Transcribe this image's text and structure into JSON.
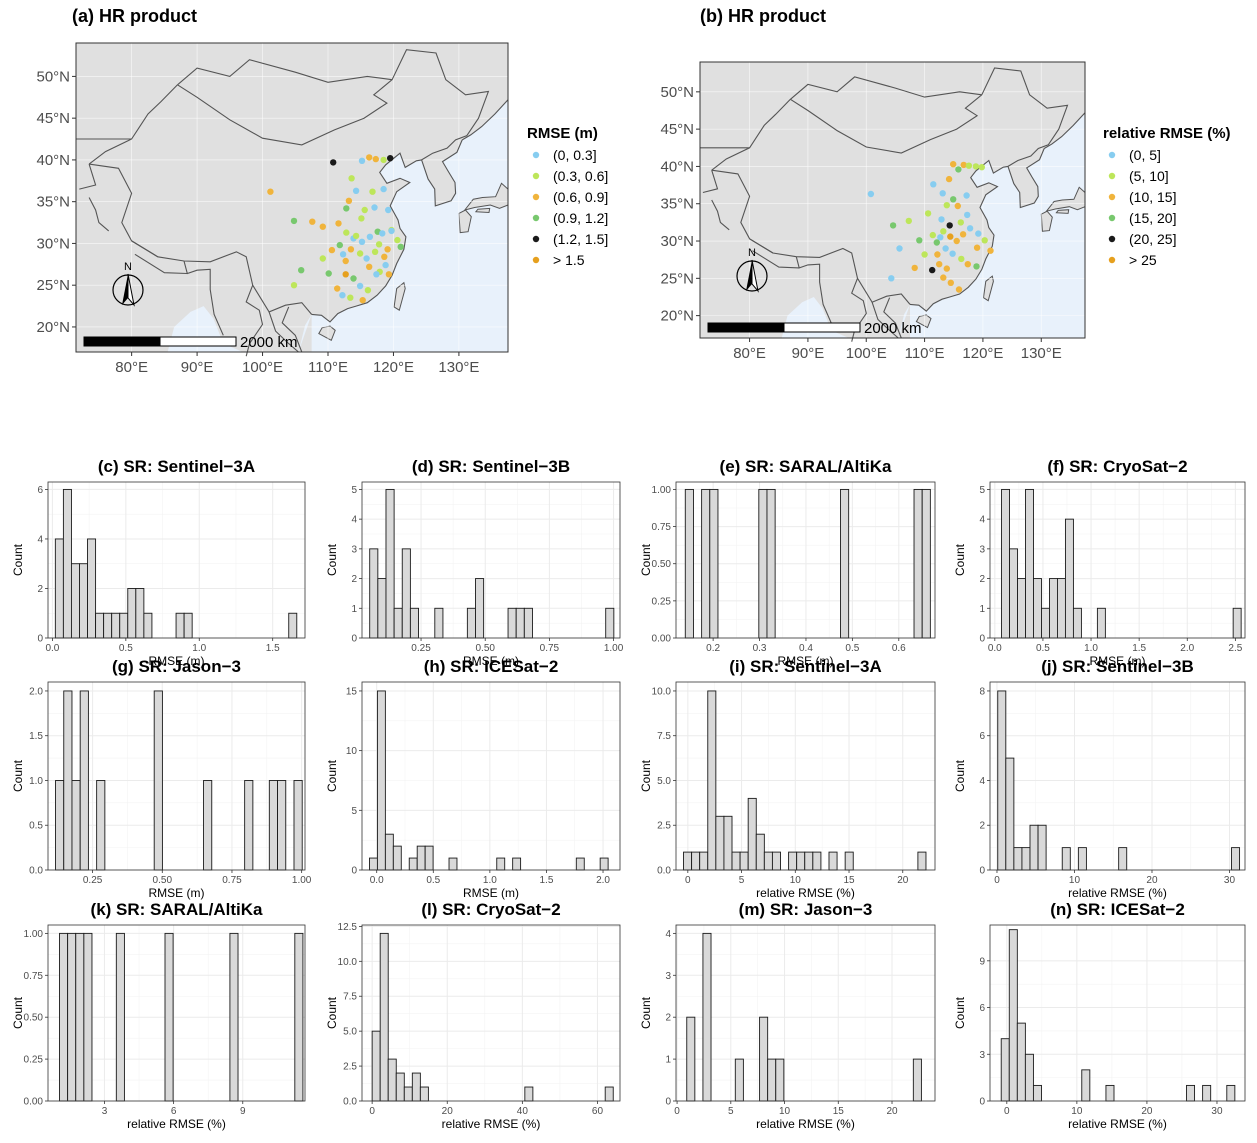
{
  "colors": {
    "panel_bg": "#ffffff",
    "grid": "#ebebeb",
    "bar_fill": "#d9d9d9",
    "bar_stroke": "#1a1a1a",
    "land": "#e0e0e0",
    "sea": "#e8f1fb",
    "border": "#555555"
  },
  "maps": [
    {
      "title": "(a) HR product",
      "legend_title": "RMSE (m)",
      "legend": [
        {
          "label": "(0, 0.3]",
          "color": "#87cdf0"
        },
        {
          "label": "(0.3, 0.6]",
          "color": "#bde65a"
        },
        {
          "label": "(0.6, 0.9]",
          "color": "#f0b43c"
        },
        {
          "label": "(0.9, 1.2]",
          "color": "#78c86e"
        },
        {
          "label": "(1.2, 1.5]",
          "color": "#1a1a1a"
        },
        {
          "label": "> 1.5",
          "color": "#e6a01e"
        }
      ],
      "xticks": [
        "80°E",
        "90°E",
        "100°E",
        "110°E",
        "120°E",
        "130°E"
      ],
      "yticks": [
        "20°N",
        "25°N",
        "30°N",
        "35°N",
        "40°N",
        "45°N",
        "50°N"
      ],
      "scale_label": "2000 km"
    },
    {
      "title": "(b) HR product",
      "legend_title": "relative RMSE (%)",
      "legend": [
        {
          "label": "(0, 5]",
          "color": "#87cdf0"
        },
        {
          "label": "(5, 10]",
          "color": "#bde65a"
        },
        {
          "label": "(10, 15]",
          "color": "#f0b43c"
        },
        {
          "label": "(15, 20]",
          "color": "#78c86e"
        },
        {
          "label": "(20, 25]",
          "color": "#1a1a1a"
        },
        {
          "label": "> 25",
          "color": "#e6a01e"
        }
      ],
      "xticks": [
        "80°E",
        "90°E",
        "100°E",
        "110°E",
        "120°E",
        "130°E"
      ],
      "yticks": [
        "20°N",
        "25°N",
        "30°N",
        "35°N",
        "40°N",
        "45°N",
        "50°N"
      ],
      "scale_label": "2000 km"
    }
  ],
  "chart_data": [
    {
      "type": "bar",
      "title": "(c) SR: Sentinel−3A",
      "xlabel": "RMSE (m)",
      "ylabel": "Count",
      "xlim": [
        -0.03,
        1.72
      ],
      "ylim": [
        0,
        6.3
      ],
      "xticks": [
        0.0,
        0.5,
        1.0,
        1.5
      ],
      "xticklabels": [
        "0.0",
        "0.5",
        "1.0",
        "1.5"
      ],
      "yticks": [
        0,
        2,
        4,
        6
      ],
      "yticklabels": [
        "0",
        "2",
        "4",
        "6"
      ],
      "bin_start": 0.02,
      "bin_width": 0.0548,
      "counts": [
        4,
        6,
        3,
        3,
        4,
        1,
        1,
        1,
        1,
        2,
        2,
        1,
        0,
        0,
        0,
        1,
        1,
        0,
        0,
        0,
        0,
        0,
        0,
        0,
        0,
        0,
        0,
        0,
        0,
        1
      ]
    },
    {
      "type": "bar",
      "title": "(d) SR: Sentinel−3B",
      "xlabel": "RMSE (m)",
      "ylabel": "Count",
      "xlim": [
        0.02,
        1.025
      ],
      "ylim": [
        0,
        5.25
      ],
      "xticks": [
        0.25,
        0.5,
        0.75,
        1.0
      ],
      "xticklabels": [
        "0.25",
        "0.50",
        "0.75",
        "1.00"
      ],
      "yticks": [
        0,
        1,
        2,
        3,
        4,
        5
      ],
      "yticklabels": [
        "0",
        "1",
        "2",
        "3",
        "4",
        "5"
      ],
      "bin_start": 0.05,
      "bin_width": 0.0317,
      "counts": [
        3,
        2,
        5,
        1,
        3,
        1,
        0,
        0,
        1,
        0,
        0,
        0,
        1,
        2,
        0,
        0,
        0,
        1,
        1,
        1,
        0,
        0,
        0,
        0,
        0,
        0,
        0,
        0,
        0,
        1
      ]
    },
    {
      "type": "bar",
      "title": "(e) SR: SARAL/AltiKa",
      "xlabel": "RMSE (m)",
      "ylabel": "Count",
      "xlim": [
        0.12,
        0.678
      ],
      "ylim": [
        0,
        1.05
      ],
      "xticks": [
        0.2,
        0.3,
        0.4,
        0.5,
        0.6
      ],
      "xticklabels": [
        "0.2",
        "0.3",
        "0.4",
        "0.5",
        "0.6"
      ],
      "yticks": [
        0,
        0.25,
        0.5,
        0.75,
        1.0
      ],
      "yticklabels": [
        "0.00",
        "0.25",
        "0.50",
        "0.75",
        "1.00"
      ],
      "bin_start": 0.14,
      "bin_width": 0.0176,
      "counts": [
        1,
        0,
        1,
        1,
        0,
        0,
        0,
        0,
        0,
        1,
        1,
        0,
        0,
        0,
        0,
        0,
        0,
        0,
        0,
        1,
        0,
        0,
        0,
        0,
        0,
        0,
        0,
        0,
        1,
        1
      ]
    },
    {
      "type": "bar",
      "title": "(f) SR: CryoSat−2",
      "xlabel": "RMSE (m)",
      "ylabel": "Count",
      "xlim": [
        -0.05,
        2.6
      ],
      "ylim": [
        0,
        5.25
      ],
      "xticks": [
        0.0,
        0.5,
        1.0,
        1.5,
        2.0,
        2.5
      ],
      "xticklabels": [
        "0.0",
        "0.5",
        "1.0",
        "1.5",
        "2.0",
        "2.5"
      ],
      "yticks": [
        0,
        1,
        2,
        3,
        4,
        5
      ],
      "yticklabels": [
        "0",
        "1",
        "2",
        "3",
        "4",
        "5"
      ],
      "bin_start": 0.07,
      "bin_width": 0.083,
      "counts": [
        5,
        3,
        2,
        5,
        2,
        1,
        2,
        2,
        4,
        1,
        0,
        0,
        1,
        0,
        0,
        0,
        0,
        0,
        0,
        0,
        0,
        0,
        0,
        0,
        0,
        0,
        0,
        0,
        0,
        1
      ]
    },
    {
      "type": "bar",
      "title": "(g) SR: Jason−3",
      "xlabel": "RMSE (m)",
      "ylabel": "Count",
      "xlim": [
        0.09,
        1.012
      ],
      "ylim": [
        0,
        2.1
      ],
      "xticks": [
        0.25,
        0.5,
        0.75,
        1.0
      ],
      "xticklabels": [
        "0.25",
        "0.50",
        "0.75",
        "1.00"
      ],
      "yticks": [
        0,
        0.5,
        1.0,
        1.5,
        2.0
      ],
      "yticklabels": [
        "0.0",
        "0.5",
        "1.0",
        "1.5",
        "2.0"
      ],
      "bin_start": 0.117,
      "bin_width": 0.0295,
      "counts": [
        1,
        2,
        1,
        2,
        0,
        1,
        0,
        0,
        0,
        0,
        0,
        0,
        2,
        0,
        0,
        0,
        0,
        0,
        1,
        0,
        0,
        0,
        0,
        1,
        0,
        0,
        1,
        1,
        0,
        1
      ]
    },
    {
      "type": "bar",
      "title": "(h) SR: ICESat−2",
      "xlabel": "RMSE (m)",
      "ylabel": "Count",
      "xlim": [
        -0.13,
        2.15
      ],
      "ylim": [
        0,
        15.75
      ],
      "xticks": [
        0.0,
        0.5,
        1.0,
        1.5,
        2.0
      ],
      "xticklabels": [
        "0.0",
        "0.5",
        "1.0",
        "1.5",
        "2.0"
      ],
      "yticks": [
        0,
        5,
        10,
        15
      ],
      "yticklabels": [
        "0",
        "5",
        "10",
        "15"
      ],
      "bin_start": -0.064,
      "bin_width": 0.0703,
      "counts": [
        1,
        15,
        3,
        2,
        0,
        1,
        2,
        2,
        0,
        0,
        1,
        0,
        0,
        0,
        0,
        0,
        1,
        0,
        1,
        0,
        0,
        0,
        0,
        0,
        0,
        0,
        1,
        0,
        0,
        1
      ]
    },
    {
      "type": "bar",
      "title": "(i) SR: Sentinel−3A",
      "xlabel": "relative RMSE (%)",
      "ylabel": "Count",
      "xlim": [
        -1.1,
        23.0
      ],
      "ylim": [
        0,
        10.5
      ],
      "xticks": [
        0,
        5,
        10,
        15,
        20
      ],
      "xticklabels": [
        "0",
        "5",
        "10",
        "15",
        "20"
      ],
      "yticks": [
        0,
        2.5,
        5.0,
        7.5,
        10.0
      ],
      "yticklabels": [
        "0.0",
        "2.5",
        "5.0",
        "7.5",
        "10.0"
      ],
      "bin_start": -0.4,
      "bin_width": 0.752,
      "counts": [
        1,
        1,
        1,
        10,
        3,
        3,
        1,
        1,
        4,
        2,
        1,
        1,
        0,
        1,
        1,
        1,
        1,
        0,
        1,
        0,
        1,
        0,
        0,
        0,
        0,
        0,
        0,
        0,
        0,
        1
      ]
    },
    {
      "type": "bar",
      "title": "(j) SR: Sentinel−3B",
      "xlabel": "relative RMSE (%)",
      "ylabel": "Count",
      "xlim": [
        -0.9,
        32.0
      ],
      "ylim": [
        0,
        8.4
      ],
      "xticks": [
        0,
        10,
        20,
        30
      ],
      "xticklabels": [
        "0",
        "10",
        "20",
        "30"
      ],
      "yticks": [
        0,
        2,
        4,
        6,
        8
      ],
      "yticklabels": [
        "0",
        "2",
        "4",
        "6",
        "8"
      ],
      "bin_start": 0.1,
      "bin_width": 1.04,
      "counts": [
        8,
        5,
        1,
        1,
        2,
        2,
        0,
        0,
        1,
        0,
        1,
        0,
        0,
        0,
        0,
        1,
        0,
        0,
        0,
        0,
        0,
        0,
        0,
        0,
        0,
        0,
        0,
        0,
        0,
        1
      ]
    },
    {
      "type": "bar",
      "title": "(k) SR: SARAL/AltiKa",
      "xlabel": "relative RMSE (%)",
      "ylabel": "Count",
      "xlim": [
        0.55,
        11.7
      ],
      "ylim": [
        0,
        1.05
      ],
      "xticks": [
        3,
        6,
        9
      ],
      "xticklabels": [
        "3",
        "6",
        "9"
      ],
      "yticks": [
        0,
        0.25,
        0.5,
        0.75,
        1.0
      ],
      "yticklabels": [
        "0.00",
        "0.25",
        "0.50",
        "0.75",
        "1.00"
      ],
      "bin_start": 1.05,
      "bin_width": 0.352,
      "counts": [
        1,
        1,
        1,
        1,
        0,
        0,
        0,
        1,
        0,
        0,
        0,
        0,
        0,
        1,
        0,
        0,
        0,
        0,
        0,
        0,
        0,
        1,
        0,
        0,
        0,
        0,
        0,
        0,
        0,
        1
      ]
    },
    {
      "type": "bar",
      "title": "(l) SR: CryoSat−2",
      "xlabel": "relative RMSE (%)",
      "ylabel": "Count",
      "xlim": [
        -2.7,
        66.0
      ],
      "ylim": [
        0,
        12.6
      ],
      "xticks": [
        0,
        20,
        40,
        60
      ],
      "xticklabels": [
        "0",
        "20",
        "40",
        "60"
      ],
      "yticks": [
        0,
        2.5,
        5.0,
        7.5,
        10.0,
        12.5
      ],
      "yticklabels": [
        "0.0",
        "2.5",
        "5.0",
        "7.5",
        "10.0",
        "12.5"
      ],
      "bin_start": 0.0,
      "bin_width": 2.14,
      "counts": [
        5,
        12,
        3,
        2,
        1,
        2,
        1,
        0,
        0,
        0,
        0,
        0,
        0,
        0,
        0,
        0,
        0,
        0,
        0,
        1,
        0,
        0,
        0,
        0,
        0,
        0,
        0,
        0,
        0,
        1
      ]
    },
    {
      "type": "bar",
      "title": "(m) SR: Jason−3",
      "xlabel": "relative RMSE (%)",
      "ylabel": "Count",
      "xlim": [
        -0.1,
        24.0
      ],
      "ylim": [
        0,
        4.2
      ],
      "xticks": [
        0,
        5,
        10,
        15,
        20
      ],
      "xticklabels": [
        "0",
        "5",
        "10",
        "15",
        "20"
      ],
      "yticks": [
        0,
        1,
        2,
        3,
        4
      ],
      "yticklabels": [
        "0",
        "1",
        "2",
        "3",
        "4"
      ],
      "bin_start": 0.9,
      "bin_width": 0.753,
      "counts": [
        2,
        0,
        4,
        0,
        0,
        0,
        1,
        0,
        0,
        2,
        1,
        1,
        0,
        0,
        0,
        0,
        0,
        0,
        0,
        0,
        0,
        0,
        0,
        0,
        0,
        0,
        0,
        0,
        1,
        0
      ]
    },
    {
      "type": "bar",
      "title": "(n) SR: ICESat−2",
      "xlabel": "relative RMSE (%)",
      "ylabel": "Count",
      "xlim": [
        -2.4,
        34.0
      ],
      "ylim": [
        0,
        11.3
      ],
      "xticks": [
        0,
        10,
        20,
        30
      ],
      "xticklabels": [
        "0",
        "10",
        "20",
        "30"
      ],
      "yticks": [
        0,
        3,
        6,
        9
      ],
      "yticklabels": [
        "0",
        "3",
        "6",
        "9"
      ],
      "bin_start": -0.8,
      "bin_width": 1.15,
      "counts": [
        4,
        11,
        5,
        3,
        1,
        0,
        0,
        0,
        0,
        0,
        2,
        0,
        0,
        1,
        0,
        0,
        0,
        0,
        0,
        0,
        0,
        0,
        0,
        1,
        0,
        1,
        0,
        0,
        1,
        0
      ]
    }
  ]
}
